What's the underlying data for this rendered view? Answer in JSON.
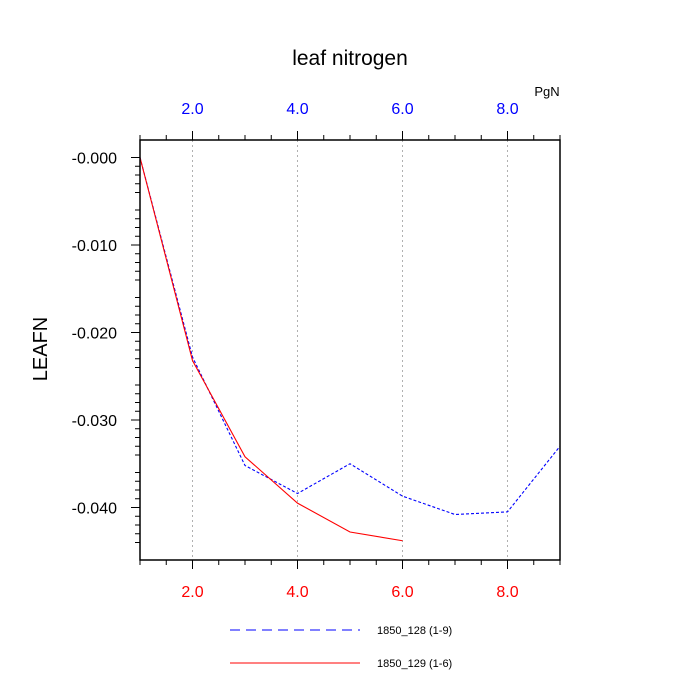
{
  "chart_data": {
    "type": "line",
    "title": "leaf nitrogen",
    "ylabel": "LEAFN",
    "units_label": "PgN",
    "xlim": [
      1,
      9
    ],
    "ylim": [
      -0.046,
      0.002
    ],
    "x_ticks": [
      2,
      4,
      6,
      8
    ],
    "x_tick_labels": [
      "2.0",
      "4.0",
      "6.0",
      "8.0"
    ],
    "y_ticks": [
      0,
      -0.01,
      -0.02,
      -0.03,
      -0.04
    ],
    "y_tick_labels": [
      "-0.000",
      "-0.010",
      "-0.020",
      "-0.030",
      "-0.040"
    ],
    "grid": "vertical dotted at x ticks",
    "bottom_axis_color": "#ff0000",
    "top_axis_color": "#0000ff",
    "series": [
      {
        "name": "1850_128 (1-9)",
        "color": "#0000ff",
        "style": "dashed",
        "x": [
          1,
          2,
          3,
          4,
          5,
          6,
          7,
          8,
          9
        ],
        "y": [
          0.0,
          -0.0228,
          -0.0352,
          -0.0384,
          -0.035,
          -0.0387,
          -0.0408,
          -0.0405,
          -0.033
        ]
      },
      {
        "name": "1850_129 (1-6)",
        "color": "#ff0000",
        "style": "solid",
        "x": [
          1,
          2,
          3,
          4,
          5,
          6
        ],
        "y": [
          0.0,
          -0.0232,
          -0.0342,
          -0.0395,
          -0.0428,
          -0.0438
        ]
      }
    ]
  }
}
